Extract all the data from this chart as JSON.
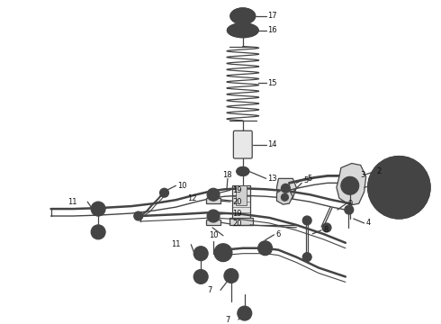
{
  "bg_color": "#ffffff",
  "line_color": "#444444",
  "fig_width": 4.9,
  "fig_height": 3.6,
  "dpi": 100
}
